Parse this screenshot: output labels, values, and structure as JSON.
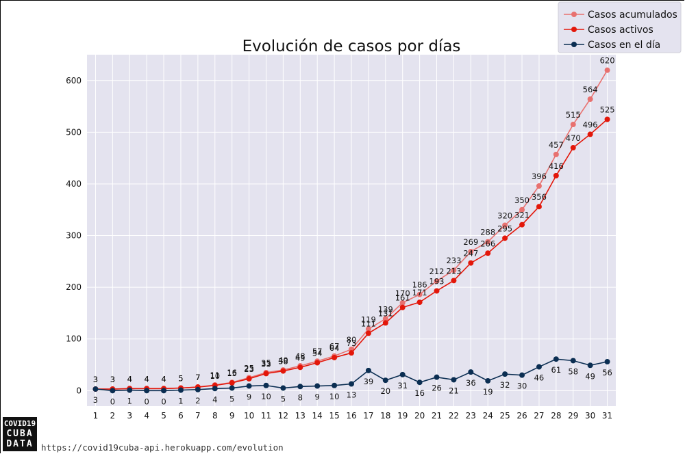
{
  "logo": {
    "line1": "COVID19",
    "line2": "CUBA",
    "line3": "DATA"
  },
  "source_url": "https://covid19cuba-api.herokuapp.com/evolution",
  "chart_data": {
    "type": "line",
    "title": "Evolución de casos por días",
    "xlabel": "",
    "ylabel": "",
    "x": [
      1,
      2,
      3,
      4,
      5,
      6,
      7,
      8,
      9,
      10,
      11,
      12,
      13,
      14,
      15,
      16,
      17,
      18,
      19,
      20,
      21,
      22,
      23,
      24,
      25,
      26,
      27,
      28,
      29,
      30,
      31
    ],
    "xlim": [
      0.5,
      31.5
    ],
    "ylim": [
      -30,
      650
    ],
    "yticks": [
      0,
      100,
      200,
      300,
      400,
      500,
      600
    ],
    "grid": true,
    "legend": "top-right",
    "series": [
      {
        "name": "Casos acumulados",
        "color": "#e8716f",
        "values": [
          3,
          3,
          4,
          4,
          4,
          5,
          7,
          11,
          16,
          25,
          35,
          40,
          48,
          57,
          67,
          80,
          119,
          139,
          170,
          186,
          212,
          233,
          269,
          288,
          320,
          350,
          396,
          457,
          515,
          564,
          620
        ]
      },
      {
        "name": "Casos activos",
        "color": "#e3170a",
        "values": [
          3,
          3,
          4,
          4,
          4,
          5,
          7,
          10,
          15,
          23,
          33,
          38,
          45,
          54,
          64,
          73,
          111,
          131,
          161,
          171,
          193,
          213,
          247,
          266,
          295,
          321,
          356,
          416,
          470,
          496,
          525
        ]
      },
      {
        "name": "Casos en el día",
        "color": "#0b2e52",
        "values": [
          3,
          0,
          1,
          0,
          0,
          1,
          2,
          4,
          5,
          9,
          10,
          5,
          8,
          9,
          10,
          13,
          39,
          20,
          31,
          16,
          26,
          21,
          36,
          19,
          32,
          30,
          46,
          61,
          58,
          49,
          56
        ]
      }
    ]
  }
}
